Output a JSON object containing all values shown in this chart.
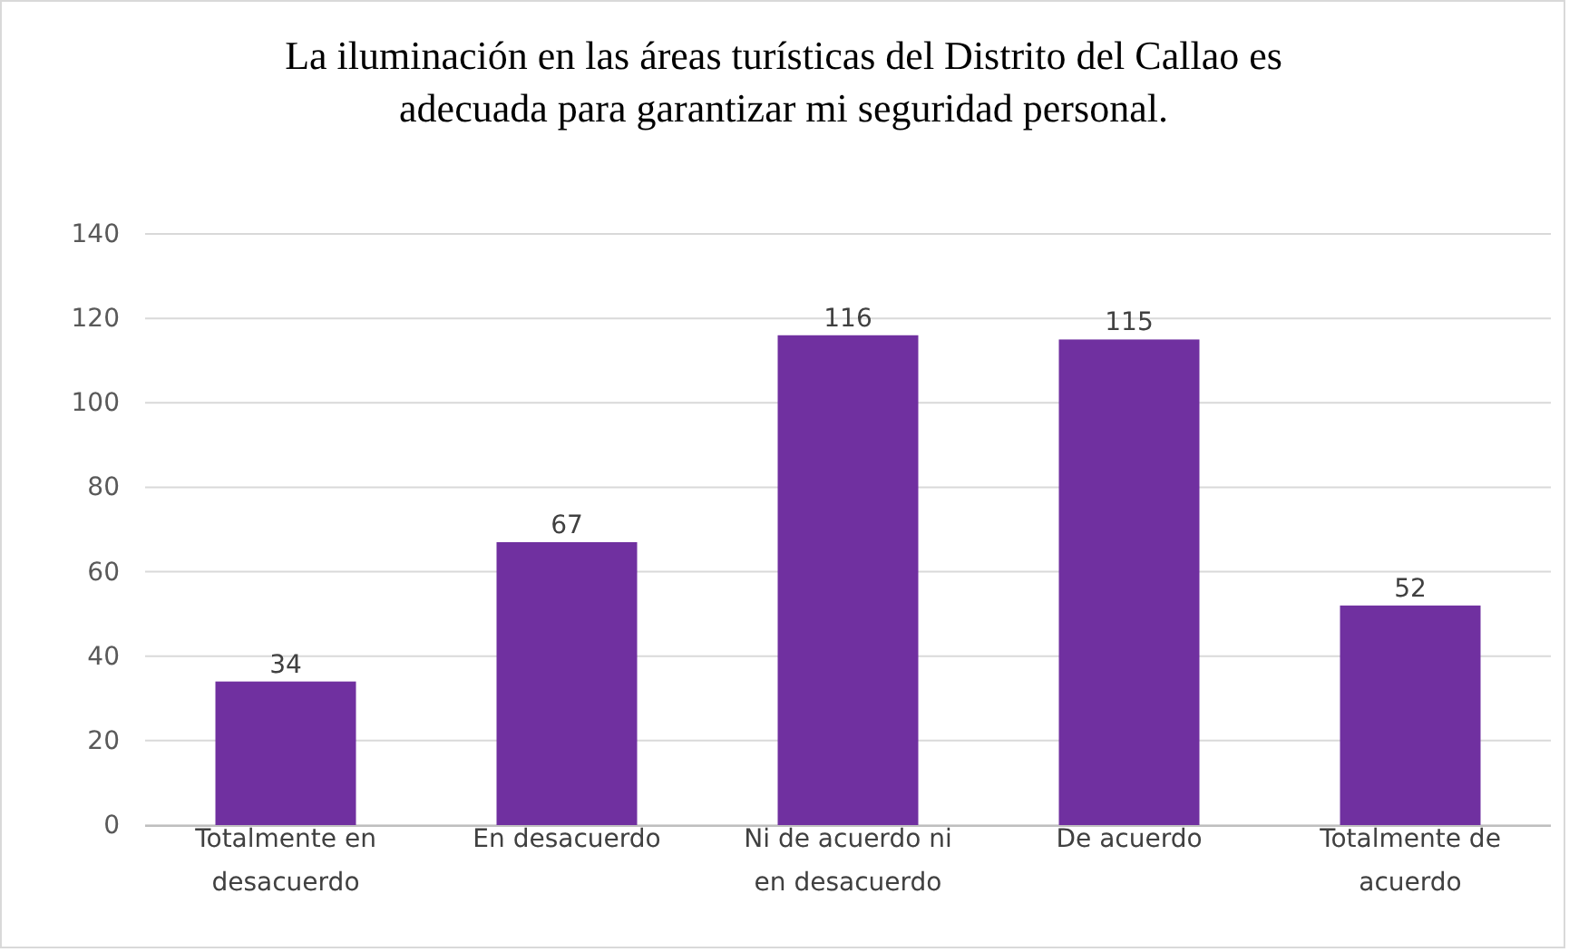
{
  "chart_data": {
    "type": "bar",
    "title": "La iluminación en las áreas turísticas del Distrito del Callao es adecuada para garantizar mi seguridad personal.",
    "categories": [
      "Totalmente en desacuerdo",
      "En desacuerdo",
      "Ni de acuerdo ni en desacuerdo",
      "De acuerdo",
      "Totalmente de acuerdo"
    ],
    "values": [
      34,
      67,
      116,
      115,
      52
    ],
    "color": "#7030a0",
    "ylim": [
      0,
      140
    ],
    "yticks": [
      0,
      20,
      40,
      60,
      80,
      100,
      120,
      140
    ],
    "grid": "y",
    "data_labels": true
  }
}
